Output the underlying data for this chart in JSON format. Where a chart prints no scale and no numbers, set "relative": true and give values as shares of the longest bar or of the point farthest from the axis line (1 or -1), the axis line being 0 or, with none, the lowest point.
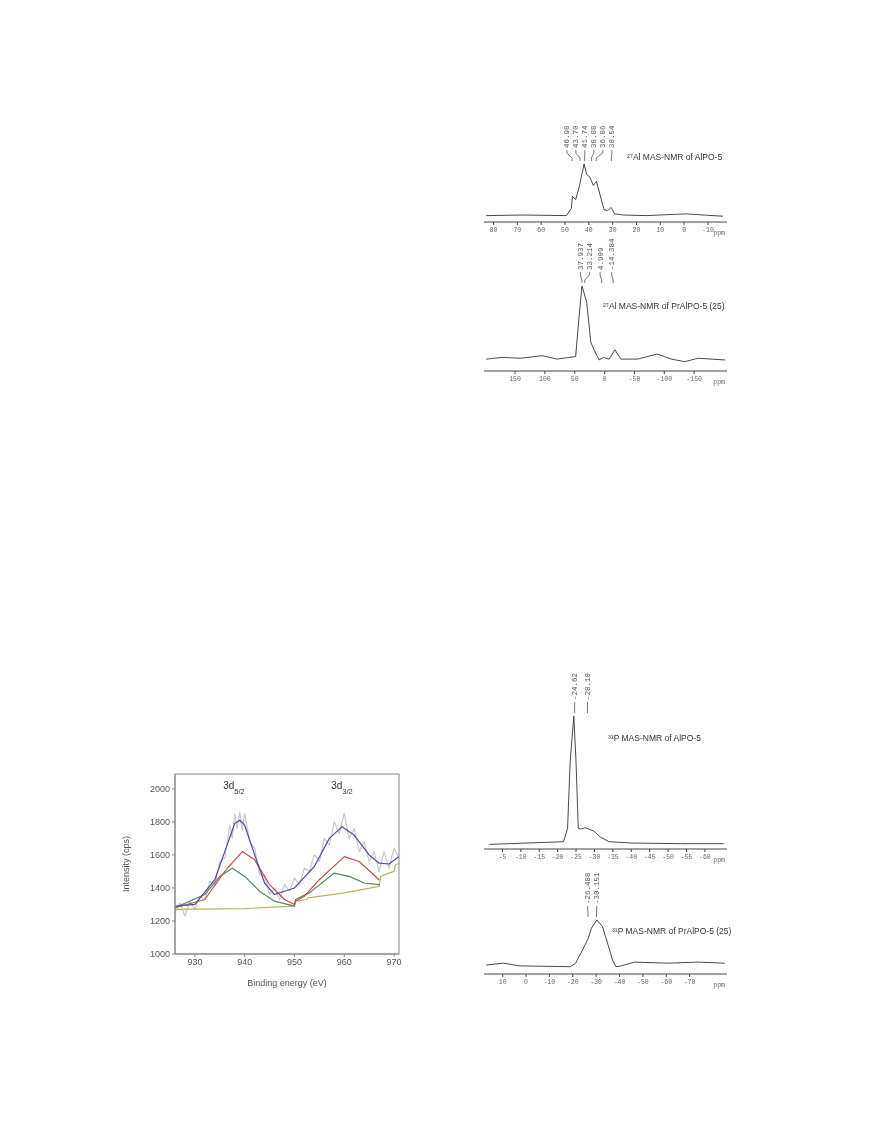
{
  "chart_data": [
    {
      "type": "line",
      "title": "²⁷Al MAS-NMR of AlPO-5",
      "xlabel": "ppm",
      "relative": true,
      "marker": "none",
      "xlim": [
        84,
        -18
      ],
      "xticks": [
        80,
        70,
        60,
        50,
        40,
        30,
        20,
        10,
        0,
        -10
      ],
      "annotations": [
        {
          "text": "46.98",
          "x": 46.98
        },
        {
          "text": "43.70",
          "x": 43.7
        },
        {
          "text": "41.74",
          "x": 41.74
        },
        {
          "text": "38.88",
          "x": 38.88
        },
        {
          "text": "36.86",
          "x": 36.86
        },
        {
          "text": "30.54",
          "x": 30.54
        }
      ],
      "series": [
        {
          "color": "#333333",
          "x": [
            82.9,
            67.6,
            49.4,
            47.3,
            46.9,
            45.5,
            44.1,
            42.0,
            40.9,
            39.5,
            38.1,
            36.8,
            35.3,
            33.6,
            32.0,
            30.6,
            29.2,
            25.3,
            15.9,
            -0.8,
            -16.1
          ],
          "values": [
            0.11,
            0.12,
            0.11,
            0.24,
            0.44,
            0.39,
            0.59,
            1.0,
            0.82,
            0.77,
            0.63,
            0.7,
            0.47,
            0.21,
            0.2,
            0.25,
            0.14,
            0.12,
            0.11,
            0.14,
            0.1
          ]
        }
      ]
    },
    {
      "type": "line",
      "title": "²⁷Al MAS-NMR of PrAlPO-5 (25)",
      "xlabel": "ppm",
      "relative": true,
      "marker": "none",
      "xlim": [
        202,
        -205
      ],
      "xticks": [
        150,
        100,
        50,
        0,
        -50,
        -100,
        -150
      ],
      "annotations": [
        {
          "text": "37.937",
          "x": 37.937
        },
        {
          "text": "33.214",
          "x": 33.214
        },
        {
          "text": "4.909",
          "x": 4.909
        },
        {
          "text": "-14.384",
          "x": -14.384
        }
      ],
      "series": [
        {
          "color": "#333333",
          "x": [
            197.5,
            172,
            141,
            104.7,
            79.4,
            48.5,
            43,
            37.9,
            30,
            23.2,
            17.7,
            9.2,
            1.8,
            -7.6,
            -17.2,
            -27.3,
            -55.5,
            -88,
            -111.7,
            -134.2,
            -156.7,
            -201.5
          ],
          "values": [
            0.14,
            0.16,
            0.15,
            0.18,
            0.14,
            0.17,
            0.62,
            1.0,
            0.81,
            0.34,
            0.25,
            0.13,
            0.16,
            0.14,
            0.25,
            0.14,
            0.14,
            0.2,
            0.14,
            0.11,
            0.15,
            0.13
          ]
        }
      ]
    },
    {
      "type": "line",
      "title": "³¹P MAS-NMR of AlPO-5",
      "xlabel": "ppm",
      "relative": true,
      "marker": "none",
      "xlim": [
        0,
        -66
      ],
      "xticks": [
        -5,
        -10,
        -15,
        -20,
        -25,
        -30,
        -35,
        -40,
        -45,
        -50,
        -55,
        -60
      ],
      "annotations": [
        {
          "text": "-24.62",
          "x": -24.62
        },
        {
          "text": "-28.10",
          "x": -28.1
        }
      ],
      "series": [
        {
          "color": "#333333",
          "x": [
            -1.6,
            -17.1,
            -21.6,
            -22.7,
            -23.4,
            -24.4,
            -25.0,
            -25.6,
            -26.2,
            -27.5,
            -29.8,
            -31.6,
            -33.9,
            -39.8,
            -53.4,
            -65
          ],
          "values": [
            0.035,
            0.05,
            0.055,
            0.155,
            0.655,
            1.0,
            0.655,
            0.155,
            0.15,
            0.16,
            0.135,
            0.09,
            0.055,
            0.045,
            0.04,
            0.04
          ]
        }
      ]
    },
    {
      "type": "line",
      "xlabel": "Binding energy (eV)",
      "ylabel": "Intensity (cps)",
      "marker": "none",
      "xlim": [
        926,
        971
      ],
      "xticks": [
        930,
        940,
        950,
        960,
        970
      ],
      "ylim": [
        1000,
        2090
      ],
      "yticks": [
        1000,
        1200,
        1400,
        1600,
        1800,
        2000
      ],
      "annotations": [
        "3d$_{5/2}$",
        "3d$_{3/2}$"
      ],
      "series": [
        {
          "color": "#c8c8c8",
          "x": [
            926,
            927,
            928,
            929,
            930,
            931,
            932,
            933,
            934,
            935,
            936,
            937,
            937.5,
            938,
            938.5,
            939,
            939.5,
            940,
            941,
            942,
            943,
            944,
            945,
            946,
            947,
            948,
            949,
            950,
            951,
            952,
            953,
            954,
            955,
            956,
            957,
            958,
            959,
            960,
            961,
            962,
            963,
            964,
            965,
            966,
            967,
            968,
            969,
            970,
            971
          ],
          "values": [
            1250,
            1310,
            1230,
            1320,
            1270,
            1350,
            1330,
            1440,
            1420,
            1560,
            1580,
            1780,
            1700,
            1850,
            1760,
            1860,
            1750,
            1850,
            1680,
            1640,
            1480,
            1470,
            1360,
            1400,
            1330,
            1420,
            1380,
            1460,
            1420,
            1520,
            1500,
            1600,
            1560,
            1700,
            1660,
            1800,
            1730,
            1850,
            1700,
            1760,
            1620,
            1680,
            1560,
            1620,
            1500,
            1620,
            1520,
            1640,
            1580
          ]
        },
        {
          "color": "#b8b85a",
          "x": [
            926,
            940,
            950,
            950.2,
            952.5,
            952.7,
            960,
            967,
            967.3,
            969,
            970,
            970.3,
            971
          ],
          "values": [
            1270,
            1275,
            1290,
            1320,
            1330,
            1340,
            1370,
            1410,
            1470,
            1490,
            1500,
            1540,
            1550
          ]
        },
        {
          "color": "#4f8a5f",
          "x": [
            926,
            932,
            935,
            937.5,
            940,
            943,
            946,
            950,
            950.2,
            953,
            958,
            961,
            964,
            967
          ],
          "values": [
            1280,
            1360,
            1470,
            1520,
            1470,
            1380,
            1320,
            1290,
            1330,
            1370,
            1490,
            1470,
            1430,
            1420
          ]
        },
        {
          "color": "#c0504d",
          "x": [
            926,
            932,
            936,
            939.5,
            942,
            945,
            948,
            950,
            950.2,
            952,
            955,
            960,
            963,
            967
          ],
          "values": [
            1280,
            1330,
            1500,
            1620,
            1570,
            1420,
            1330,
            1300,
            1320,
            1350,
            1450,
            1590,
            1560,
            1450
          ]
        },
        {
          "color": "#4b4f9a",
          "x": [
            926,
            930,
            934,
            936,
            938,
            939,
            940,
            942,
            944,
            946,
            950,
            954,
            957,
            959.5,
            962,
            965,
            967,
            969,
            971
          ],
          "values": [
            1290,
            1300,
            1450,
            1620,
            1790,
            1810,
            1780,
            1600,
            1430,
            1360,
            1400,
            1530,
            1700,
            1770,
            1720,
            1600,
            1550,
            1545,
            1590
          ]
        }
      ]
    },
    {
      "type": "line",
      "title": "³¹P MAS-NMR of PrAlPO-5 (25)",
      "xlabel": "ppm",
      "relative": true,
      "marker": "none",
      "xlim": [
        18,
        -86
      ],
      "xticks": [
        10,
        0,
        -10,
        -20,
        -30,
        -40,
        -50,
        -60,
        -70
      ],
      "annotations": [
        {
          "text": "-26.488",
          "x": -26.488
        },
        {
          "text": "-30.151",
          "x": -30.151
        }
      ],
      "series": [
        {
          "color": "#333333",
          "x": [
            16.8,
            9.7,
            2.5,
            -19,
            -21.2,
            -24.1,
            -26.6,
            -28,
            -30.3,
            -32.7,
            -34.9,
            -37,
            -38.5,
            -40.7,
            -46.4,
            -60.7,
            -73.7,
            -84.9
          ],
          "values": [
            0.167,
            0.2,
            0.15,
            0.135,
            0.2,
            0.44,
            0.66,
            0.85,
            1.0,
            0.88,
            0.57,
            0.26,
            0.135,
            0.15,
            0.22,
            0.2,
            0.22,
            0.2
          ]
        }
      ]
    }
  ]
}
